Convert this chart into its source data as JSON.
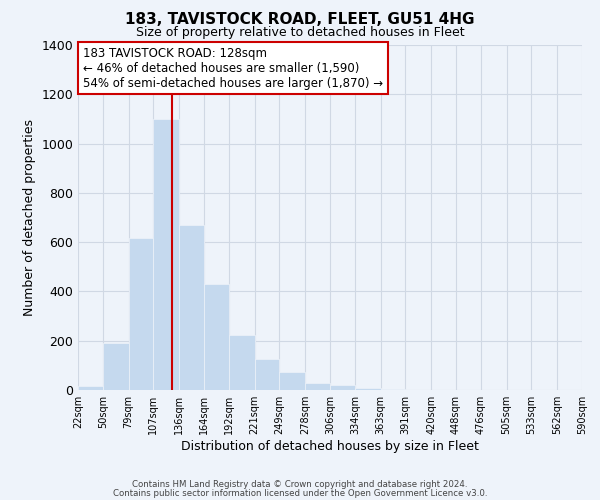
{
  "title": "183, TAVISTOCK ROAD, FLEET, GU51 4HG",
  "subtitle": "Size of property relative to detached houses in Fleet",
  "xlabel": "Distribution of detached houses by size in Fleet",
  "ylabel": "Number of detached properties",
  "bar_color": "#c5d9ee",
  "vline_color": "#cc0000",
  "bins": [
    22,
    50,
    79,
    107,
    136,
    164,
    192,
    221,
    249,
    278,
    306,
    334,
    363,
    391,
    420,
    448,
    476,
    505,
    533,
    562,
    590
  ],
  "bin_labels": [
    "22sqm",
    "50sqm",
    "79sqm",
    "107sqm",
    "136sqm",
    "164sqm",
    "192sqm",
    "221sqm",
    "249sqm",
    "278sqm",
    "306sqm",
    "334sqm",
    "363sqm",
    "391sqm",
    "420sqm",
    "448sqm",
    "476sqm",
    "505sqm",
    "533sqm",
    "562sqm",
    "590sqm"
  ],
  "values": [
    15,
    190,
    615,
    1100,
    670,
    430,
    225,
    125,
    75,
    30,
    20,
    10,
    5,
    2,
    1,
    0,
    0,
    0,
    0,
    0
  ],
  "ylim": [
    0,
    1400
  ],
  "yticks": [
    0,
    200,
    400,
    600,
    800,
    1000,
    1200,
    1400
  ],
  "annotation_line1": "183 TAVISTOCK ROAD: 128sqm",
  "annotation_line2": "← 46% of detached houses are smaller (1,590)",
  "annotation_line3": "54% of semi-detached houses are larger (1,870) →",
  "annotation_box_edge_color": "#cc0000",
  "footer1": "Contains HM Land Registry data © Crown copyright and database right 2024.",
  "footer2": "Contains public sector information licensed under the Open Government Licence v3.0.",
  "background_color": "#eef3fa",
  "grid_color": "#d0d8e4"
}
